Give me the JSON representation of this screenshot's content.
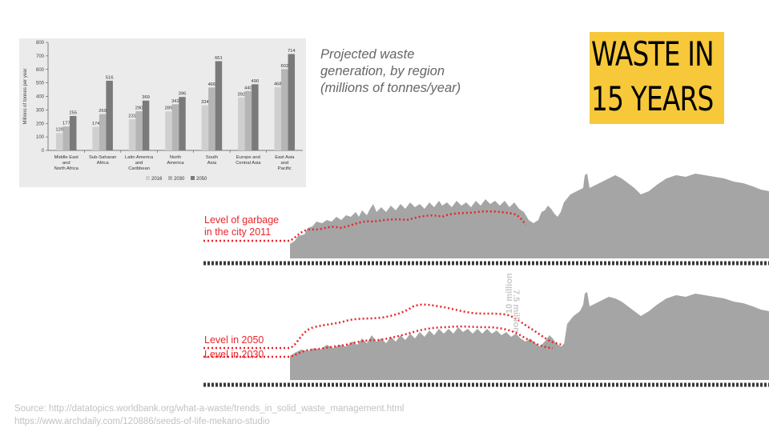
{
  "caption": "Projected waste generation, by region (millions of tonnes/year)",
  "title": {
    "line1": "WASTE IN",
    "line2": "15 YEARS"
  },
  "skyline_labels": {
    "level_2011": [
      "Level of garbage",
      "in the city 2011"
    ],
    "level_2050": "Level in 2050",
    "level_2030": "Level in 2030",
    "vertical_10m": "10 million",
    "vertical_75m": "7.5 million"
  },
  "sources": [
    "Source: http://datatopics.worldbank.org/what-a-waste/trends_in_solid_waste_management.html",
    "https://www.archdaily.com/120886/seeds-of-life-mekano-studio"
  ],
  "colors": {
    "accent_yellow": "#f7c83a",
    "level_red": "#e8252b",
    "skyline_gray": "#a5a5a5"
  },
  "chart_data": {
    "type": "bar",
    "ylabel": "Millions of tonnes per year",
    "ylim": [
      0,
      800
    ],
    "yticks": [
      0,
      100,
      200,
      300,
      400,
      500,
      600,
      700,
      800
    ],
    "categories": [
      [
        "Middle East",
        "and",
        "North Africa"
      ],
      [
        "Sub-Saharan",
        "Africa"
      ],
      [
        "Latin America",
        "and",
        "Caribbean"
      ],
      [
        "North",
        "America"
      ],
      [
        "South",
        "Asia"
      ],
      [
        "Europe and",
        "Central Asia"
      ],
      [
        "East Asia",
        "and",
        "Pacific"
      ]
    ],
    "series": [
      {
        "name": "2016",
        "color": "#cfcfcf",
        "values": [
          129,
          174,
          231,
          289,
          334,
          392,
          468
        ]
      },
      {
        "name": "2030",
        "color": "#b5b5b5",
        "values": [
          177,
          269,
          290,
          342,
          466,
          440,
          602
        ]
      },
      {
        "name": "2050",
        "color": "#7a7a7a",
        "values": [
          255,
          516,
          369,
          396,
          661,
          490,
          714
        ]
      }
    ],
    "legend_position": "bottom",
    "grid": false
  }
}
